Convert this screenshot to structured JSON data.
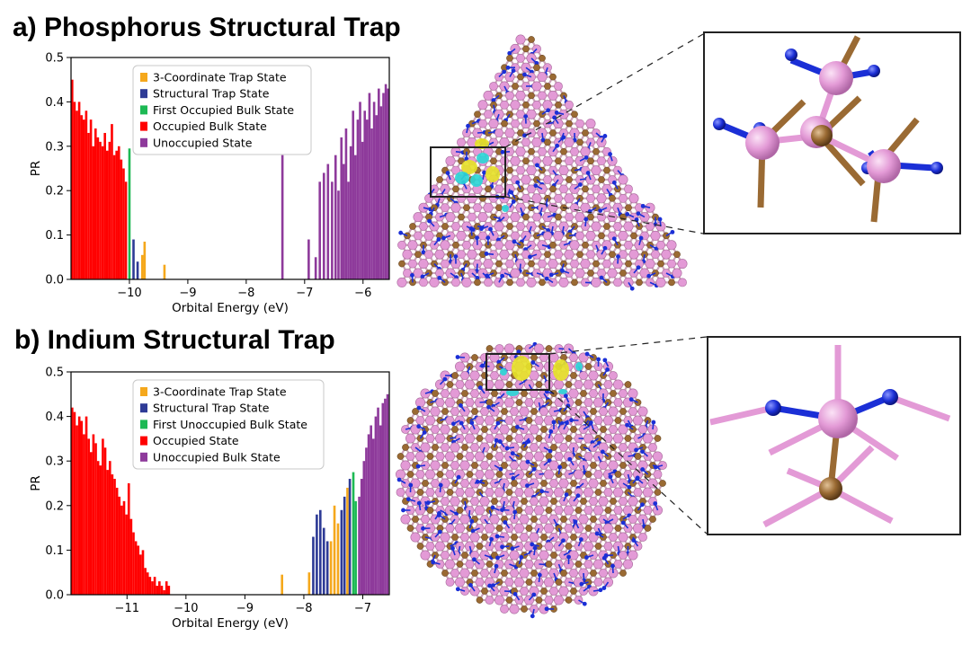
{
  "panels": {
    "a": {
      "title": "a) Phosphorus Structural Trap"
    },
    "b": {
      "title": "b) Indium Structural Trap"
    }
  },
  "chart_data": [
    {
      "id": "a",
      "type": "bar",
      "title": "",
      "xlabel": "Orbital Energy (eV)",
      "ylabel": "PR",
      "xlim": [
        -11.0,
        -5.55
      ],
      "ylim": [
        0.0,
        0.5
      ],
      "xticks": [
        -10,
        -9,
        -8,
        -7,
        -6
      ],
      "xtick_labels": [
        "−10",
        "−9",
        "−8",
        "−7",
        "−6"
      ],
      "yticks": [
        0.0,
        0.1,
        0.2,
        0.3,
        0.4,
        0.5
      ],
      "ytick_labels": [
        "0.0",
        "0.1",
        "0.2",
        "0.3",
        "0.4",
        "0.5"
      ],
      "bar_width": 0.04,
      "legend": [
        {
          "label": "3-Coordinate Trap State",
          "color": "#f5a81c"
        },
        {
          "label": "Structural Trap State",
          "color": "#2e3b96"
        },
        {
          "label": "First Occupied Bulk State",
          "color": "#1db954"
        },
        {
          "label": "Occupied Bulk State",
          "color": "#ff0000"
        },
        {
          "label": "Unoccupied State",
          "color": "#8e3a9b"
        }
      ],
      "series": [
        {
          "name": "Occupied Bulk State",
          "color": "#ff0000",
          "x": [
            -10.98,
            -10.94,
            -10.9,
            -10.86,
            -10.82,
            -10.78,
            -10.74,
            -10.7,
            -10.66,
            -10.62,
            -10.58,
            -10.54,
            -10.5,
            -10.46,
            -10.42,
            -10.38,
            -10.34,
            -10.3,
            -10.26,
            -10.22,
            -10.18,
            -10.14,
            -10.1,
            -10.06
          ],
          "y": [
            0.45,
            0.4,
            0.38,
            0.4,
            0.37,
            0.36,
            0.38,
            0.33,
            0.36,
            0.3,
            0.34,
            0.32,
            0.31,
            0.3,
            0.33,
            0.29,
            0.31,
            0.35,
            0.28,
            0.29,
            0.3,
            0.27,
            0.25,
            0.22
          ]
        },
        {
          "name": "First Occupied Bulk State",
          "color": "#1db954",
          "x": [
            -10.0
          ],
          "y": [
            0.295
          ]
        },
        {
          "name": "Structural Trap State",
          "color": "#2e3b96",
          "x": [
            -9.93,
            -9.86
          ],
          "y": [
            0.09,
            0.04
          ]
        },
        {
          "name": "3-Coordinate Trap State",
          "color": "#f5a81c",
          "x": [
            -9.74,
            -9.78,
            -9.4
          ],
          "y": [
            0.085,
            0.055,
            0.033
          ]
        },
        {
          "name": "Unoccupied State",
          "color": "#8e3a9b",
          "x": [
            -7.38,
            -6.93,
            -6.81,
            -6.74,
            -6.67,
            -6.6,
            -6.53,
            -6.47,
            -6.42,
            -6.37,
            -6.33,
            -6.29,
            -6.25,
            -6.21,
            -6.17,
            -6.13,
            -6.09,
            -6.05,
            -6.01,
            -5.97,
            -5.93,
            -5.89,
            -5.85,
            -5.81,
            -5.77,
            -5.73,
            -5.69,
            -5.65,
            -5.61,
            -5.57
          ],
          "y": [
            0.28,
            0.09,
            0.05,
            0.22,
            0.24,
            0.26,
            0.22,
            0.28,
            0.2,
            0.32,
            0.26,
            0.34,
            0.22,
            0.3,
            0.38,
            0.28,
            0.36,
            0.4,
            0.31,
            0.38,
            0.36,
            0.42,
            0.34,
            0.4,
            0.37,
            0.43,
            0.39,
            0.42,
            0.44,
            0.43
          ]
        }
      ]
    },
    {
      "id": "b",
      "type": "bar",
      "title": "",
      "xlabel": "Orbital Energy (eV)",
      "ylabel": "PR",
      "xlim": [
        -11.95,
        -6.55
      ],
      "ylim": [
        0.0,
        0.5
      ],
      "xticks": [
        -11,
        -10,
        -9,
        -8,
        -7
      ],
      "xtick_labels": [
        "−11",
        "−10",
        "−9",
        "−8",
        "−7"
      ],
      "yticks": [
        0.0,
        0.1,
        0.2,
        0.3,
        0.4,
        0.5
      ],
      "ytick_labels": [
        "0.0",
        "0.1",
        "0.2",
        "0.3",
        "0.4",
        "0.5"
      ],
      "bar_width": 0.04,
      "legend": [
        {
          "label": "3-Coordinate Trap State",
          "color": "#f5a81c"
        },
        {
          "label": "Structural Trap State",
          "color": "#2e3b96"
        },
        {
          "label": "First Unoccupied Bulk State",
          "color": "#1db954"
        },
        {
          "label": "Occupied State",
          "color": "#ff0000"
        },
        {
          "label": "Unoccupied Bulk State",
          "color": "#8e3a9b"
        }
      ],
      "series": [
        {
          "name": "Occupied State",
          "color": "#ff0000",
          "x": [
            -11.93,
            -11.89,
            -11.85,
            -11.81,
            -11.77,
            -11.73,
            -11.69,
            -11.65,
            -11.61,
            -11.57,
            -11.53,
            -11.49,
            -11.45,
            -11.41,
            -11.37,
            -11.33,
            -11.29,
            -11.25,
            -11.21,
            -11.17,
            -11.13,
            -11.09,
            -11.05,
            -11.01,
            -10.97,
            -10.93,
            -10.89,
            -10.85,
            -10.81,
            -10.77,
            -10.73,
            -10.69,
            -10.65,
            -10.61,
            -10.57,
            -10.53,
            -10.49,
            -10.45,
            -10.41,
            -10.37,
            -10.33,
            -10.29
          ],
          "y": [
            0.42,
            0.41,
            0.38,
            0.4,
            0.39,
            0.36,
            0.4,
            0.35,
            0.32,
            0.36,
            0.34,
            0.3,
            0.29,
            0.35,
            0.33,
            0.28,
            0.3,
            0.27,
            0.26,
            0.24,
            0.22,
            0.2,
            0.21,
            0.18,
            0.25,
            0.17,
            0.14,
            0.12,
            0.11,
            0.09,
            0.1,
            0.06,
            0.05,
            0.04,
            0.03,
            0.04,
            0.02,
            0.03,
            0.02,
            0.01,
            0.03,
            0.02
          ]
        },
        {
          "name": "3-Coordinate Trap State",
          "color": "#f5a81c",
          "x": [
            -8.37,
            -7.91,
            -7.54,
            -7.48,
            -7.42,
            -7.26
          ],
          "y": [
            0.045,
            0.05,
            0.12,
            0.2,
            0.16,
            0.24
          ]
        },
        {
          "name": "Structural Trap State",
          "color": "#2e3b96",
          "x": [
            -7.84,
            -7.78,
            -7.72,
            -7.66,
            -7.6,
            -7.36,
            -7.31,
            -7.22
          ],
          "y": [
            0.13,
            0.18,
            0.19,
            0.15,
            0.12,
            0.19,
            0.22,
            0.26
          ]
        },
        {
          "name": "First Unoccupied Bulk State",
          "color": "#1db954",
          "x": [
            -7.16,
            -7.12
          ],
          "y": [
            0.275,
            0.21
          ]
        },
        {
          "name": "Unoccupied Bulk State",
          "color": "#8e3a9b",
          "x": [
            -7.06,
            -7.02,
            -6.98,
            -6.94,
            -6.9,
            -6.86,
            -6.82,
            -6.78,
            -6.74,
            -6.7,
            -6.66,
            -6.62,
            -6.58
          ],
          "y": [
            0.22,
            0.26,
            0.3,
            0.33,
            0.36,
            0.38,
            0.35,
            0.4,
            0.42,
            0.38,
            0.43,
            0.44,
            0.45
          ]
        }
      ]
    }
  ],
  "structures": {
    "a": {
      "name": "phosphorus-trap-nanocrystal",
      "colors": {
        "indium": "#e39ad6",
        "phosphorus": "#9a6a33",
        "ligand": "#1b2fd6",
        "bond": "#c9a3b6",
        "orbital_pos": "#e6e22a",
        "orbital_neg": "#2cd6d6"
      }
    },
    "b": {
      "name": "indium-trap-nanocrystal",
      "colors": {
        "indium": "#e39ad6",
        "phosphorus": "#9a6a33",
        "ligand": "#1b2fd6",
        "bond": "#c9a3b6",
        "orbital_pos": "#e6e22a",
        "orbital_neg": "#2cd6d6"
      }
    }
  }
}
